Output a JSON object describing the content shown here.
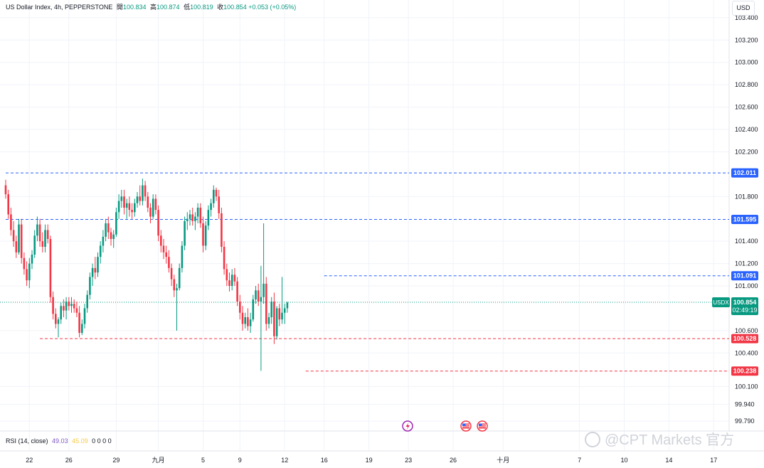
{
  "header": {
    "symbol": "US Dollar Index, 4h, PEPPERSTONE",
    "ohlc": [
      {
        "label": "開",
        "value": "100.834"
      },
      {
        "label": "高",
        "value": "100.874"
      },
      {
        "label": "低",
        "value": "100.819"
      },
      {
        "label": "收",
        "value": "100.854"
      }
    ],
    "change": "+0.053 (+0.05%)"
  },
  "currency": "USD",
  "rsi": {
    "label": "RSI (14, close)",
    "value1": "49.03",
    "value2": "45.09",
    "zeros": "0 0 0 0"
  },
  "watermark": "@CPT Markets 官方",
  "colors": {
    "up": "#089981",
    "down": "#f23645",
    "blue_line": "#2962ff",
    "red_line": "#f23645",
    "grid": "#f0f3fa",
    "axis_text": "#131722"
  },
  "chart_data": {
    "type": "candlestick",
    "ylim": [
      99.74,
      103.52
    ],
    "y_ticks": [
      "103.400",
      "103.200",
      "103.000",
      "102.800",
      "102.600",
      "102.400",
      "102.200",
      "101.800",
      "101.400",
      "101.200",
      "101.000",
      "100.600",
      "100.400",
      "100.100",
      "99.940",
      "99.790"
    ],
    "x_ticks": [
      {
        "label": "22",
        "bar": 9
      },
      {
        "label": "26",
        "bar": 24
      },
      {
        "label": "29",
        "bar": 42
      },
      {
        "label": "九月",
        "bar": 58
      },
      {
        "label": "5",
        "bar": 75
      },
      {
        "label": "9",
        "bar": 89
      },
      {
        "label": "12",
        "bar": 106
      },
      {
        "label": "16",
        "bar": 121
      },
      {
        "label": "19",
        "bar": 138
      },
      {
        "label": "23",
        "bar": 153
      },
      {
        "label": "26",
        "bar": 170
      },
      {
        "label": "十月",
        "bar": 189
      },
      {
        "label": "7",
        "bar": 218
      },
      {
        "label": "10",
        "bar": 235
      },
      {
        "label": "14",
        "bar": 252
      },
      {
        "label": "17",
        "bar": 269
      }
    ],
    "horizontal_levels": [
      {
        "value": 102.011,
        "label": "102.011",
        "color": "blue",
        "from_bar": 0
      },
      {
        "value": 101.595,
        "label": "101.595",
        "color": "blue",
        "from_bar": 0
      },
      {
        "value": 101.091,
        "label": "101.091",
        "color": "blue",
        "from_bar": 121
      },
      {
        "value": 100.528,
        "label": "100.528",
        "color": "red",
        "from_bar": 13
      },
      {
        "value": 100.238,
        "label": "100.238",
        "color": "red",
        "from_bar": 114
      }
    ],
    "current_price": {
      "value": 100.854,
      "symbol": "USDX",
      "label": "100.854",
      "countdown": "02:49:19"
    },
    "series": [
      {
        "ohlc": [
          [
            101.9,
            101.95,
            101.78,
            101.82
          ],
          [
            101.82,
            101.86,
            101.6,
            101.64
          ],
          [
            101.64,
            101.7,
            101.45,
            101.5
          ],
          [
            101.5,
            101.58,
            101.35,
            101.4
          ],
          [
            101.4,
            101.45,
            101.25,
            101.3
          ],
          [
            101.3,
            101.6,
            101.28,
            101.55
          ],
          [
            101.55,
            101.6,
            101.2,
            101.25
          ],
          [
            101.25,
            101.3,
            101.1,
            101.15
          ],
          [
            101.15,
            101.22,
            101.0,
            101.05
          ],
          [
            101.05,
            101.25,
            100.98,
            101.2
          ],
          [
            101.2,
            101.32,
            101.15,
            101.28
          ],
          [
            101.28,
            101.5,
            101.25,
            101.45
          ],
          [
            101.45,
            101.62,
            101.4,
            101.55
          ],
          [
            101.55,
            101.6,
            101.35,
            101.4
          ],
          [
            101.4,
            101.48,
            101.3,
            101.35
          ],
          [
            101.35,
            101.55,
            101.3,
            101.5
          ],
          [
            101.5,
            101.55,
            101.38,
            101.42
          ],
          [
            101.42,
            101.45,
            100.85,
            100.9
          ],
          [
            100.9,
            100.95,
            100.7,
            100.75
          ],
          [
            100.75,
            100.8,
            100.62,
            100.66
          ],
          [
            100.66,
            100.72,
            100.54,
            100.7
          ],
          [
            100.7,
            100.85,
            100.66,
            100.82
          ],
          [
            100.82,
            100.88,
            100.72,
            100.78
          ],
          [
            100.78,
            100.9,
            100.7,
            100.86
          ],
          [
            100.86,
            100.9,
            100.78,
            100.82
          ],
          [
            100.82,
            100.9,
            100.76,
            100.84
          ],
          [
            100.84,
            100.88,
            100.76,
            100.8
          ],
          [
            100.8,
            100.86,
            100.72,
            100.76
          ],
          [
            100.76,
            100.82,
            100.54,
            100.58
          ],
          [
            100.58,
            100.7,
            100.56,
            100.66
          ],
          [
            100.66,
            100.84,
            100.62,
            100.8
          ],
          [
            100.8,
            100.96,
            100.76,
            100.92
          ],
          [
            100.92,
            101.12,
            100.88,
            101.08
          ],
          [
            101.08,
            101.2,
            101.0,
            101.16
          ],
          [
            101.16,
            101.26,
            101.06,
            101.12
          ],
          [
            101.12,
            101.3,
            101.08,
            101.26
          ],
          [
            101.26,
            101.4,
            101.2,
            101.36
          ],
          [
            101.36,
            101.5,
            101.3,
            101.44
          ],
          [
            101.44,
            101.6,
            101.4,
            101.56
          ],
          [
            101.56,
            101.62,
            101.42,
            101.48
          ],
          [
            101.48,
            101.52,
            101.36,
            101.42
          ],
          [
            101.42,
            101.5,
            101.34,
            101.46
          ],
          [
            101.46,
            101.7,
            101.44,
            101.66
          ],
          [
            101.66,
            101.82,
            101.6,
            101.76
          ],
          [
            101.76,
            101.86,
            101.7,
            101.8
          ],
          [
            101.8,
            101.86,
            101.64,
            101.7
          ],
          [
            101.7,
            101.78,
            101.6,
            101.74
          ],
          [
            101.74,
            101.8,
            101.62,
            101.68
          ],
          [
            101.68,
            101.74,
            101.6,
            101.66
          ],
          [
            101.66,
            101.78,
            101.62,
            101.74
          ],
          [
            101.74,
            101.84,
            101.7,
            101.8
          ],
          [
            101.8,
            101.9,
            101.72,
            101.76
          ],
          [
            101.76,
            101.96,
            101.72,
            101.9
          ],
          [
            101.9,
            101.94,
            101.76,
            101.8
          ],
          [
            101.8,
            101.84,
            101.66,
            101.7
          ],
          [
            101.7,
            101.74,
            101.56,
            101.62
          ],
          [
            101.62,
            101.82,
            101.6,
            101.78
          ],
          [
            101.78,
            101.82,
            101.64,
            101.68
          ],
          [
            101.68,
            101.72,
            101.4,
            101.45
          ],
          [
            101.45,
            101.5,
            101.3,
            101.36
          ],
          [
            101.36,
            101.42,
            101.24,
            101.3
          ],
          [
            101.3,
            101.36,
            101.2,
            101.26
          ],
          [
            101.26,
            101.32,
            101.12,
            101.16
          ],
          [
            101.16,
            101.2,
            101.0,
            101.06
          ],
          [
            101.06,
            101.1,
            100.9,
            100.96
          ],
          [
            100.96,
            101.02,
            100.6,
            100.98
          ],
          [
            100.98,
            101.2,
            100.96,
            101.16
          ],
          [
            101.16,
            101.4,
            101.12,
            101.36
          ],
          [
            101.36,
            101.62,
            101.32,
            101.58
          ],
          [
            101.58,
            101.66,
            101.5,
            101.6
          ],
          [
            101.6,
            101.68,
            101.54,
            101.64
          ],
          [
            101.64,
            101.7,
            101.54,
            101.58
          ],
          [
            101.58,
            101.66,
            101.5,
            101.62
          ],
          [
            101.62,
            101.74,
            101.56,
            101.7
          ],
          [
            101.7,
            101.74,
            101.52,
            101.56
          ],
          [
            101.56,
            101.62,
            101.3,
            101.36
          ],
          [
            101.36,
            101.58,
            101.32,
            101.54
          ],
          [
            101.54,
            101.72,
            101.5,
            101.68
          ],
          [
            101.68,
            101.78,
            101.62,
            101.74
          ],
          [
            101.74,
            101.9,
            101.7,
            101.86
          ],
          [
            101.86,
            101.88,
            101.76,
            101.8
          ],
          [
            101.8,
            101.86,
            101.6,
            101.65
          ],
          [
            101.65,
            101.7,
            101.3,
            101.35
          ],
          [
            101.35,
            101.4,
            101.1,
            101.15
          ],
          [
            101.15,
            101.2,
            101.0,
            101.05
          ],
          [
            101.05,
            101.12,
            100.95,
            101.0
          ],
          [
            101.0,
            101.15,
            100.96,
            101.1
          ],
          [
            101.1,
            101.16,
            101.0,
            101.04
          ],
          [
            101.04,
            101.08,
            100.82,
            100.86
          ],
          [
            100.86,
            100.92,
            100.7,
            100.76
          ],
          [
            100.76,
            100.82,
            100.6,
            100.66
          ],
          [
            100.66,
            100.76,
            100.62,
            100.72
          ],
          [
            100.72,
            100.8,
            100.6,
            100.64
          ],
          [
            100.64,
            100.76,
            100.58,
            100.7
          ],
          [
            100.7,
            100.92,
            100.68,
            100.88
          ],
          [
            100.88,
            101.0,
            100.84,
            100.96
          ],
          [
            100.96,
            101.02,
            100.82,
            100.86
          ],
          [
            100.86,
            101.18,
            100.24,
            100.9
          ],
          [
            100.9,
            101.56,
            100.84,
            101.02
          ],
          [
            101.02,
            101.08,
            100.6,
            100.66
          ],
          [
            100.66,
            100.76,
            100.62,
            100.72
          ],
          [
            100.72,
            100.9,
            100.66,
            100.86
          ],
          [
            100.86,
            100.94,
            100.48,
            100.55
          ],
          [
            100.55,
            100.82,
            100.52,
            100.8
          ],
          [
            100.8,
            100.84,
            100.64,
            100.7
          ],
          [
            100.7,
            101.08,
            100.66,
            100.76
          ],
          [
            100.76,
            100.84,
            100.66,
            100.8
          ],
          [
            100.8,
            100.86,
            100.76,
            100.85
          ]
        ]
      }
    ]
  }
}
